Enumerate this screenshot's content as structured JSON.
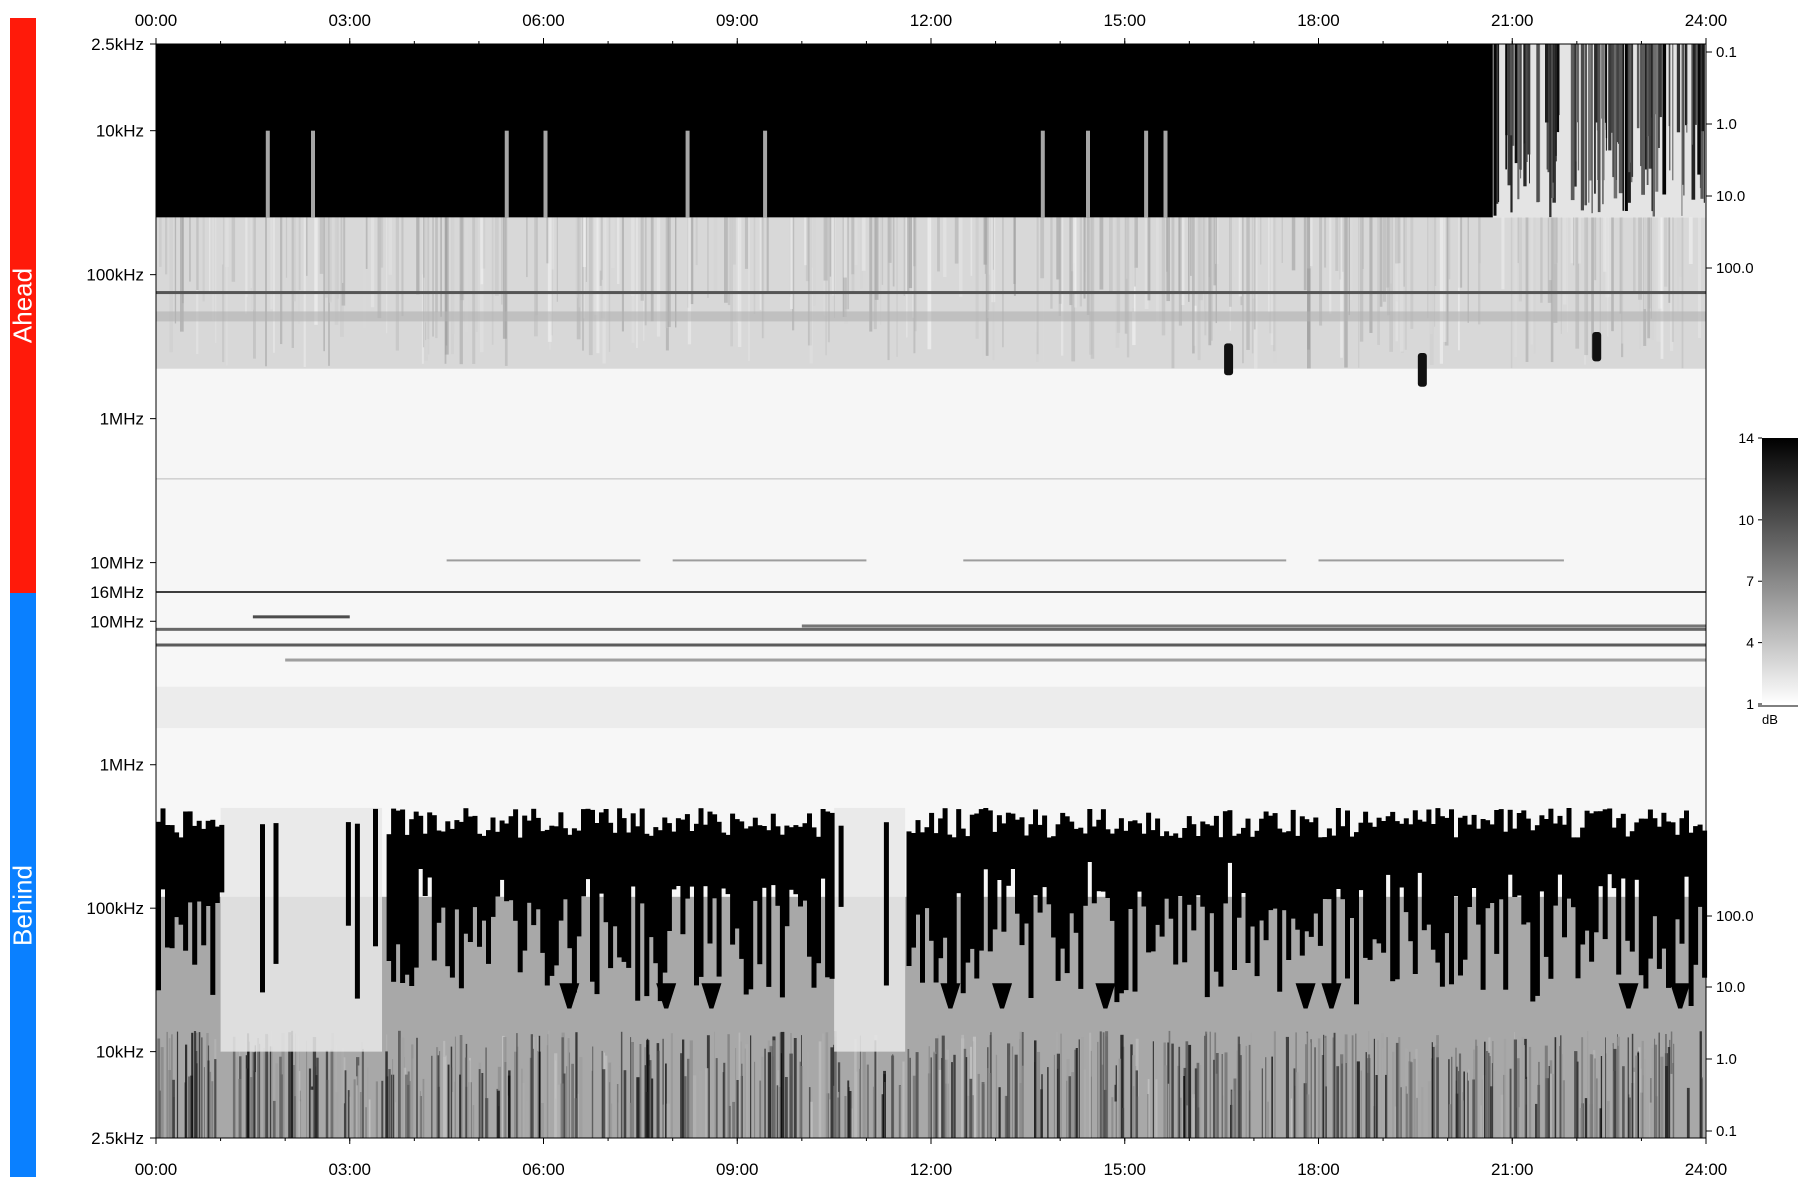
{
  "chart_data": {
    "type": "heatmap",
    "title": "",
    "time_axis": {
      "ticks": [
        "00:00",
        "03:00",
        "06:00",
        "09:00",
        "12:00",
        "15:00",
        "18:00",
        "21:00",
        "24:00"
      ],
      "range_hours": [
        0,
        24
      ]
    },
    "panels": [
      {
        "name": "Ahead",
        "color": "#ff1a0a",
        "frequency_axis": {
          "scale": "log",
          "direction": "increasing-downward",
          "range_hz": [
            2500,
            16000000
          ],
          "ticks": [
            {
              "label": "2.5kHz",
              "hz": 2500
            },
            {
              "label": "10kHz",
              "hz": 10000
            },
            {
              "label": "100kHz",
              "hz": 100000
            },
            {
              "label": "1MHz",
              "hz": 1000000
            },
            {
              "label": "10MHz",
              "hz": 10000000
            }
          ]
        },
        "right_axis": {
          "scale": "log",
          "ticks": [
            {
              "label": "0.1",
              "value": 0.1
            },
            {
              "label": "1.0",
              "value": 1.0
            },
            {
              "label": "10.0",
              "value": 10.0
            },
            {
              "label": "100.0",
              "value": 100.0
            }
          ]
        },
        "features": [
          {
            "kind": "saturated-band",
            "t_start_h": 0,
            "t_end_h": 20.7,
            "f_low_hz": 2500,
            "f_high_hz": 40000
          },
          {
            "kind": "saturated-band-striated",
            "t_start_h": 20.7,
            "t_end_h": 24,
            "f_low_hz": 2500,
            "f_high_hz": 40000
          },
          {
            "kind": "burst",
            "t_h": 16.6,
            "f_low_hz": 300000,
            "f_high_hz": 500000
          },
          {
            "kind": "burst",
            "t_h": 19.6,
            "f_low_hz": 350000,
            "f_high_hz": 600000
          },
          {
            "kind": "burst",
            "t_h": 22.3,
            "f_low_hz": 250000,
            "f_high_hz": 400000
          }
        ]
      },
      {
        "name": "Behind",
        "color": "#0a80ff",
        "frequency_axis": {
          "scale": "log",
          "direction": "increasing-upward",
          "range_hz": [
            2500,
            16000000
          ],
          "ticks": [
            {
              "label": "10MHz",
              "hz": 10000000
            },
            {
              "label": "1MHz",
              "hz": 1000000
            },
            {
              "label": "100kHz",
              "hz": 100000
            },
            {
              "label": "10kHz",
              "hz": 10000
            },
            {
              "label": "2.5kHz",
              "hz": 2500
            }
          ]
        },
        "right_axis": {
          "scale": "log",
          "ticks": [
            {
              "label": "100.0",
              "value": 100.0
            },
            {
              "label": "10.0",
              "value": 10.0
            },
            {
              "label": "1.0",
              "value": 1.0
            },
            {
              "label": "0.1",
              "value": 0.1
            }
          ]
        },
        "features": [
          {
            "kind": "intense-activity",
            "t_start_h": 0,
            "t_end_h": 24,
            "f_low_hz": 30000,
            "f_high_hz": 500000
          },
          {
            "kind": "dropout",
            "t_start_h": 1.0,
            "t_end_h": 3.5
          },
          {
            "kind": "dropout",
            "t_start_h": 10.5,
            "t_end_h": 11.6
          }
        ]
      }
    ],
    "shared_boundary_label": "16MHz",
    "colorbar": {
      "unit": "dB",
      "range": [
        1,
        14
      ],
      "ticks": [
        {
          "label": "14",
          "value": 14
        },
        {
          "label": "10",
          "value": 10
        },
        {
          "label": "7",
          "value": 7
        },
        {
          "label": "4",
          "value": 4
        },
        {
          "label": "1",
          "value": 1
        }
      ],
      "colormap": "grayscale-white-to-black"
    },
    "grid": false
  }
}
